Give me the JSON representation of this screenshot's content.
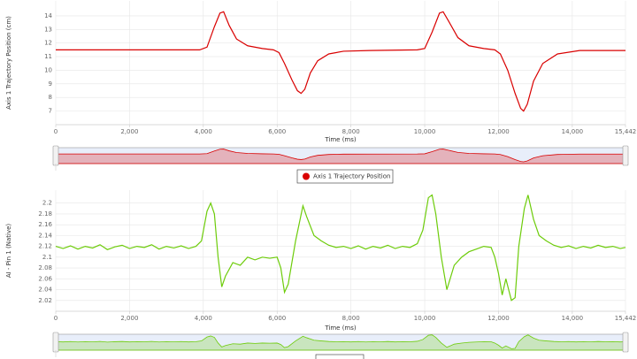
{
  "chart_data": [
    {
      "type": "line",
      "y_label": "Axis 1 Trajectory Position (cm)",
      "x_label": "Time (ms)",
      "grid": true,
      "x": [
        0,
        3900,
        4100,
        4300,
        4450,
        4550,
        4700,
        4900,
        5200,
        5600,
        5900,
        6050,
        6200,
        6400,
        6550,
        6650,
        6750,
        6900,
        7100,
        7400,
        7800,
        8500,
        9800,
        10000,
        10200,
        10400,
        10500,
        10650,
        10900,
        11200,
        11600,
        11900,
        12050,
        12250,
        12450,
        12600,
        12680,
        12780,
        12950,
        13200,
        13600,
        14200,
        15442
      ],
      "series": [
        {
          "name": "Axis 1 Trajectory Position",
          "color": "#d90000",
          "values": [
            11.5,
            11.5,
            11.7,
            13.2,
            14.2,
            14.3,
            13.3,
            12.3,
            11.8,
            11.6,
            11.5,
            11.3,
            10.5,
            9.3,
            8.5,
            8.3,
            8.6,
            9.8,
            10.7,
            11.2,
            11.4,
            11.45,
            11.5,
            11.6,
            12.8,
            14.2,
            14.3,
            13.6,
            12.4,
            11.8,
            11.6,
            11.5,
            11.2,
            10.0,
            8.3,
            7.2,
            7.0,
            7.5,
            9.2,
            10.5,
            11.2,
            11.45,
            11.45
          ]
        }
      ],
      "xlim": [
        0,
        15442
      ],
      "ylim": [
        6,
        15.1
      ],
      "xticks": [
        0,
        {
          "value": 2000,
          "label": "2,000"
        },
        {
          "value": 4000,
          "label": "4,000"
        },
        {
          "value": 6000,
          "label": "6,000"
        },
        {
          "value": 8000,
          "label": "8,000"
        },
        {
          "value": 10000,
          "label": "10,000"
        },
        {
          "value": 12000,
          "label": "12,000"
        },
        {
          "value": 14000,
          "label": "14,000"
        },
        {
          "value": 15442,
          "label": "15,442"
        }
      ],
      "yticks": [
        7,
        8,
        9,
        10,
        11,
        12,
        13,
        14
      ]
    },
    {
      "type": "line",
      "y_label": "AI - Pin 1 (Native)",
      "x_label": "Time (ms)",
      "grid": true,
      "x": [
        0,
        200,
        400,
        600,
        800,
        1000,
        1200,
        1400,
        1600,
        1800,
        2000,
        2200,
        2400,
        2600,
        2800,
        3000,
        3200,
        3400,
        3600,
        3800,
        3950,
        4100,
        4200,
        4300,
        4400,
        4500,
        4600,
        4800,
        5000,
        5200,
        5400,
        5600,
        5800,
        6000,
        6100,
        6200,
        6300,
        6500,
        6700,
        6800,
        7000,
        7200,
        7400,
        7600,
        7800,
        8000,
        8200,
        8400,
        8600,
        8800,
        9000,
        9200,
        9400,
        9600,
        9800,
        9950,
        10100,
        10200,
        10300,
        10450,
        10600,
        10800,
        11000,
        11200,
        11400,
        11600,
        11800,
        11900,
        12000,
        12100,
        12200,
        12350,
        12450,
        12550,
        12700,
        12800,
        12950,
        13100,
        13300,
        13500,
        13700,
        13900,
        14100,
        14300,
        14500,
        14700,
        14900,
        15100,
        15300,
        15442
      ],
      "series": [
        {
          "color": "#6dcc0a",
          "values": [
            2.12,
            2.116,
            2.121,
            2.115,
            2.12,
            2.117,
            2.123,
            2.114,
            2.119,
            2.122,
            2.116,
            2.12,
            2.118,
            2.123,
            2.115,
            2.12,
            2.117,
            2.121,
            2.116,
            2.12,
            2.13,
            2.185,
            2.2,
            2.18,
            2.1,
            2.045,
            2.065,
            2.09,
            2.085,
            2.1,
            2.095,
            2.1,
            2.098,
            2.1,
            2.08,
            2.035,
            2.05,
            2.13,
            2.195,
            2.175,
            2.14,
            2.13,
            2.122,
            2.118,
            2.12,
            2.116,
            2.121,
            2.115,
            2.12,
            2.117,
            2.122,
            2.116,
            2.12,
            2.118,
            2.125,
            2.15,
            2.21,
            2.215,
            2.18,
            2.1,
            2.04,
            2.085,
            2.1,
            2.11,
            2.115,
            2.12,
            2.118,
            2.1,
            2.07,
            2.03,
            2.06,
            2.02,
            2.025,
            2.12,
            2.19,
            2.215,
            2.17,
            2.14,
            2.13,
            2.122,
            2.118,
            2.121,
            2.116,
            2.12,
            2.117,
            2.122,
            2.118,
            2.12,
            2.116,
            2.118
          ]
        }
      ],
      "xlim": [
        0,
        15442
      ],
      "ylim": [
        2.0,
        2.224
      ],
      "xticks": [
        0,
        {
          "value": 2000,
          "label": "2,000"
        },
        {
          "value": 4000,
          "label": "4,000"
        },
        {
          "value": 6000,
          "label": "6,000"
        },
        {
          "value": 8000,
          "label": "8,000"
        },
        {
          "value": 10000,
          "label": "10,000"
        },
        {
          "value": 12000,
          "label": "12,000"
        },
        {
          "value": 14000,
          "label": "14,000"
        },
        {
          "value": 15442,
          "label": "15,442"
        }
      ],
      "yticks": [
        2.02,
        2.04,
        2.06,
        2.08,
        2.1,
        2.12,
        2.14,
        2.16,
        2.18,
        2.2
      ]
    }
  ]
}
